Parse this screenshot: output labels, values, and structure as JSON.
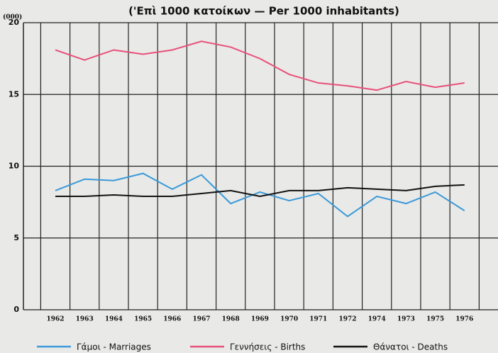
{
  "chart_data": {
    "type": "line",
    "title": "('Επὶ 1000 κατοίκων — Per 1000 inhabitants)",
    "y_label": "(000)",
    "categories": [
      "1962",
      "1963",
      "1964",
      "1965",
      "1966",
      "1967",
      "1968",
      "1969",
      "1970",
      "1971",
      "1972",
      "1974",
      "1973",
      "1975",
      "1976"
    ],
    "series": [
      {
        "name": "Γάμοι - Marriages",
        "color": "#3a9ad9",
        "values": [
          8.3,
          9.1,
          9.0,
          9.5,
          8.4,
          9.4,
          7.4,
          8.2,
          7.6,
          8.1,
          6.5,
          7.9,
          7.4,
          8.2,
          6.9
        ]
      },
      {
        "name": "Γεννήσεις - Births",
        "color": "#e8507a",
        "values": [
          18.1,
          17.4,
          18.1,
          17.8,
          18.1,
          18.7,
          18.3,
          17.5,
          16.4,
          15.8,
          15.6,
          15.3,
          15.9,
          15.5,
          15.8
        ]
      },
      {
        "name": "Θάνατοι - Deaths",
        "color": "#111111",
        "values": [
          7.9,
          7.9,
          8.0,
          7.9,
          7.9,
          8.1,
          8.3,
          7.9,
          8.3,
          8.3,
          8.5,
          8.4,
          8.3,
          8.6,
          8.7
        ]
      }
    ],
    "ylim": [
      0,
      20
    ],
    "yticks": [
      0,
      5,
      10,
      15,
      20
    ],
    "grid": true
  }
}
